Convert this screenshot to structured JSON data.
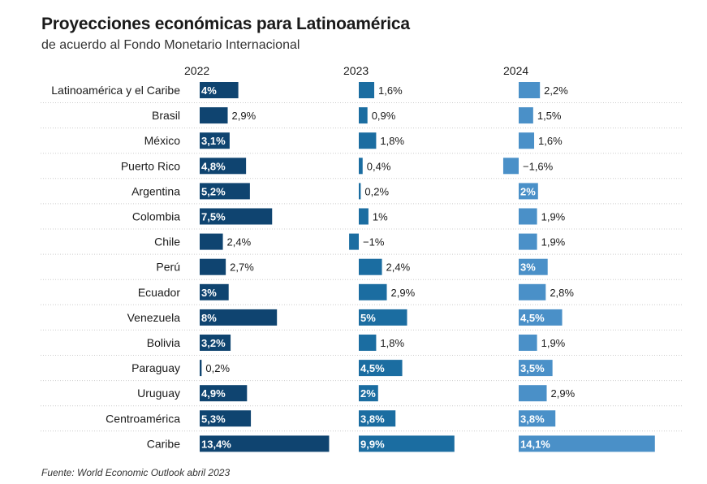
{
  "title": "Proyecciones económicas para Latinoamérica",
  "subtitle": "de acuerdo al Fondo Monetario Internacional",
  "source": "Fuente: World Economic Outlook abril 2023",
  "chart_data": {
    "type": "bar",
    "orientation": "horizontal",
    "categories": [
      "Latinoamérica y el Caribe",
      "Brasil",
      "México",
      "Puerto Rico",
      "Argentina",
      "Colombia",
      "Chile",
      "Perú",
      "Ecuador",
      "Venezuela",
      "Bolivia",
      "Paraguay",
      "Uruguay",
      "Centroamérica",
      "Caribe"
    ],
    "series": [
      {
        "name": "2022",
        "color": "#0f4470",
        "values": [
          4,
          2.9,
          3.1,
          4.8,
          5.2,
          7.5,
          2.4,
          2.7,
          3,
          8,
          3.2,
          0.2,
          4.9,
          5.3,
          13.4
        ],
        "labels": [
          "4%",
          "2,9%",
          "3,1%",
          "4,8%",
          "5,2%",
          "7,5%",
          "2,4%",
          "2,7%",
          "3%",
          "8%",
          "3,2%",
          "0,2%",
          "4,9%",
          "5,3%",
          "13,4%"
        ]
      },
      {
        "name": "2023",
        "color": "#1b6da1",
        "values": [
          1.6,
          0.9,
          1.8,
          0.4,
          0.2,
          1,
          -1,
          2.4,
          2.9,
          5,
          1.8,
          4.5,
          2,
          3.8,
          9.9
        ],
        "labels": [
          "1,6%",
          "0,9%",
          "1,8%",
          "0,4%",
          "0,2%",
          "1%",
          "−1%",
          "2,4%",
          "2,9%",
          "5%",
          "1,8%",
          "4,5%",
          "2%",
          "3,8%",
          "9,9%"
        ]
      },
      {
        "name": "2024",
        "color": "#4a90c8",
        "values": [
          2.2,
          1.5,
          1.6,
          -1.6,
          2,
          1.9,
          1.9,
          3,
          2.8,
          4.5,
          1.9,
          3.5,
          2.9,
          3.8,
          14.1
        ],
        "labels": [
          "2,2%",
          "1,5%",
          "1,6%",
          "−1,6%",
          "2%",
          "1,9%",
          "1,9%",
          "3%",
          "2,8%",
          "4,5%",
          "1,9%",
          "3,5%",
          "2,9%",
          "3,8%",
          "14,1%"
        ]
      }
    ],
    "grid": false,
    "legend": "none"
  }
}
